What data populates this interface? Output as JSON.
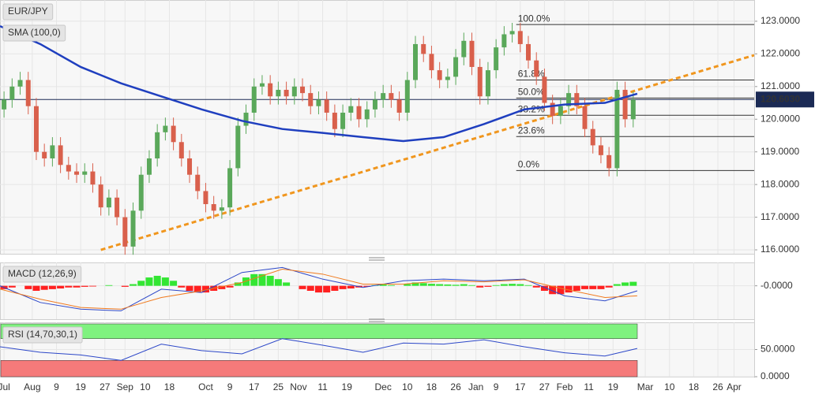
{
  "chart_data": [
    {
      "type": "candlestick",
      "title": "EUR/JPY",
      "xlim": [
        0,
        187
      ],
      "ylim": [
        115.88,
        123.65
      ],
      "yticks": [
        {
          "value": 123,
          "label": "123.0000"
        },
        {
          "value": 122,
          "label": "122.0000"
        },
        {
          "value": 121,
          "label": "121.0000"
        },
        {
          "value": 120,
          "label": "120.0000"
        },
        {
          "value": 119,
          "label": "119.0000"
        },
        {
          "value": 118,
          "label": "118.0000"
        },
        {
          "value": 117,
          "label": "117.0000"
        },
        {
          "value": 116,
          "label": "116.0000"
        }
      ],
      "grid": true,
      "up_color": "#5aa85a",
      "down_color": "#d9604c",
      "x": [
        1,
        3,
        5,
        7,
        9,
        11,
        13,
        15,
        17,
        19,
        21,
        23,
        25,
        27,
        29,
        31,
        33,
        35,
        37,
        39,
        41,
        43,
        45,
        47,
        49,
        51,
        53,
        55,
        57,
        59,
        61,
        63,
        65,
        67,
        69,
        71,
        73,
        75,
        77,
        79,
        81,
        83,
        85,
        87,
        89,
        91,
        93,
        95,
        97,
        99,
        101,
        103,
        105,
        107,
        109,
        111,
        113,
        115,
        117,
        119,
        121,
        123,
        125,
        127,
        129,
        131,
        133,
        135,
        137,
        139,
        141,
        143,
        145,
        147,
        149,
        151,
        153,
        155,
        157
      ],
      "open": [
        120.3,
        120.6,
        121.0,
        121.2,
        120.4,
        119.0,
        118.8,
        119.2,
        118.6,
        118.4,
        118.3,
        118.4,
        118.0,
        117.3,
        117.6,
        117.0,
        116.1,
        117.2,
        118.3,
        118.8,
        119.6,
        119.8,
        119.3,
        118.8,
        118.3,
        117.8,
        117.4,
        117.2,
        117.3,
        118.5,
        119.8,
        120.2,
        121.0,
        121.1,
        120.7,
        120.9,
        120.7,
        121.0,
        120.8,
        120.4,
        120.6,
        120.2,
        119.7,
        120.2,
        120.4,
        120.0,
        120.3,
        120.6,
        120.8,
        120.6,
        120.2,
        121.2,
        122.3,
        122.0,
        121.5,
        121.2,
        121.3,
        121.9,
        122.4,
        121.6,
        120.7,
        121.5,
        122.2,
        122.6,
        122.7,
        122.3,
        121.8,
        121.3,
        120.5,
        120.1,
        120.4,
        120.8,
        120.4,
        119.7,
        119.2,
        118.9,
        118.5,
        120.9,
        120.0
      ],
      "high": [
        120.85,
        121.25,
        121.45,
        121.45,
        120.65,
        119.25,
        119.45,
        119.45,
        118.85,
        118.65,
        118.65,
        118.65,
        118.25,
        117.85,
        117.85,
        117.25,
        117.45,
        118.55,
        119.05,
        119.85,
        120.05,
        120.05,
        119.55,
        119.05,
        118.55,
        118.05,
        117.65,
        117.55,
        118.75,
        120.05,
        120.45,
        121.25,
        121.35,
        121.35,
        121.15,
        121.15,
        121.25,
        121.25,
        121.05,
        120.85,
        120.85,
        120.45,
        120.45,
        120.65,
        120.65,
        120.55,
        120.85,
        121.05,
        121.05,
        120.85,
        121.45,
        122.55,
        122.55,
        122.25,
        121.75,
        121.55,
        122.15,
        122.65,
        122.65,
        121.85,
        121.75,
        122.45,
        122.85,
        122.95,
        122.95,
        122.55,
        122.05,
        121.55,
        120.75,
        120.65,
        121.05,
        121.05,
        120.65,
        119.95,
        119.45,
        119.15,
        121.15,
        121.15,
        120.85
      ],
      "low": [
        120.05,
        120.35,
        120.75,
        120.15,
        118.75,
        118.55,
        118.55,
        118.35,
        118.15,
        118.05,
        118.05,
        117.75,
        117.05,
        117.05,
        116.75,
        115.85,
        115.85,
        116.95,
        118.05,
        118.55,
        119.35,
        119.05,
        118.55,
        118.05,
        117.55,
        117.15,
        116.95,
        116.95,
        117.05,
        118.25,
        119.55,
        119.95,
        120.75,
        120.45,
        120.45,
        120.45,
        120.45,
        120.55,
        120.15,
        120.15,
        119.95,
        119.45,
        119.45,
        119.95,
        119.75,
        119.75,
        120.05,
        120.35,
        120.35,
        119.95,
        119.95,
        120.95,
        121.75,
        121.25,
        120.95,
        120.95,
        121.05,
        121.65,
        121.35,
        120.45,
        120.45,
        121.25,
        121.95,
        122.35,
        122.05,
        121.55,
        121.05,
        120.25,
        119.85,
        119.85,
        120.15,
        120.15,
        119.45,
        118.95,
        118.65,
        118.25,
        118.25,
        119.75,
        119.75
      ],
      "close": [
        120.6,
        121.0,
        121.2,
        120.4,
        119.0,
        118.8,
        119.2,
        118.6,
        118.4,
        118.3,
        118.4,
        118.0,
        117.3,
        117.6,
        117.0,
        116.1,
        117.2,
        118.3,
        118.8,
        119.6,
        119.8,
        119.3,
        118.8,
        118.3,
        117.8,
        117.4,
        117.2,
        117.3,
        118.5,
        119.8,
        120.2,
        121.0,
        121.1,
        120.7,
        120.9,
        120.7,
        121.0,
        120.8,
        120.4,
        120.6,
        120.2,
        119.7,
        120.2,
        120.4,
        120.0,
        120.3,
        120.6,
        120.8,
        120.6,
        120.2,
        121.2,
        122.3,
        122.0,
        121.5,
        121.2,
        121.3,
        121.9,
        122.4,
        121.6,
        120.7,
        121.5,
        122.2,
        122.6,
        122.7,
        122.3,
        121.8,
        121.3,
        120.5,
        120.1,
        120.4,
        120.8,
        120.4,
        119.7,
        119.2,
        118.9,
        118.5,
        120.9,
        120.0,
        120.6
      ],
      "sma": {
        "name": "SMA (100,0)",
        "color": "#1f3fbf",
        "x": [
          0,
          10,
          20,
          30,
          40,
          50,
          60,
          70,
          80,
          90,
          100,
          110,
          120,
          130,
          140,
          150,
          158
        ],
        "values": [
          122.85,
          122.3,
          121.6,
          121.1,
          120.7,
          120.3,
          119.95,
          119.7,
          119.58,
          119.45,
          119.33,
          119.45,
          119.85,
          120.3,
          120.45,
          120.5,
          120.78
        ]
      },
      "trendline": {
        "color": "#f0961e",
        "x": [
          25,
          187
        ],
        "values": [
          116.0,
          121.96
        ]
      },
      "fibonacci": {
        "start_x": 128,
        "levels": [
          {
            "value": 122.9,
            "label": "100.0%"
          },
          {
            "value": 121.2,
            "label": "61.8%"
          },
          {
            "value": 120.65,
            "label": "50.0%"
          },
          {
            "value": 120.12,
            "label": "38.2%"
          },
          {
            "value": 119.47,
            "label": "23.6%"
          },
          {
            "value": 118.43,
            "label": "0.0%"
          }
        ]
      },
      "last_price": {
        "value": 120.603,
        "label": "120.6030",
        "color": "#1b2a55"
      }
    },
    {
      "type": "macd",
      "title": "MACD (12,26,9)",
      "xlim": [
        0,
        187
      ],
      "ylim": [
        -1.0,
        0.7
      ],
      "yticks": [
        {
          "value": 0,
          "label": "-0.0000"
        }
      ],
      "up_color": "#33e633",
      "down_color": "#ff2020",
      "x": [
        1,
        3,
        5,
        7,
        9,
        11,
        13,
        15,
        17,
        19,
        21,
        23,
        25,
        27,
        29,
        31,
        33,
        35,
        37,
        39,
        41,
        43,
        45,
        47,
        49,
        51,
        53,
        55,
        57,
        59,
        61,
        63,
        65,
        67,
        69,
        71,
        73,
        75,
        77,
        79,
        81,
        83,
        85,
        87,
        89,
        91,
        93,
        95,
        97,
        99,
        101,
        103,
        105,
        107,
        109,
        111,
        113,
        115,
        117,
        119,
        121,
        123,
        125,
        127,
        129,
        131,
        133,
        135,
        137,
        139,
        141,
        143,
        145,
        147,
        149,
        151,
        153,
        155,
        157
      ],
      "histogram": [
        -0.1,
        -0.05,
        0.0,
        -0.1,
        -0.15,
        -0.12,
        -0.1,
        -0.08,
        -0.05,
        -0.05,
        -0.03,
        -0.02,
        0.0,
        0.02,
        0.0,
        -0.03,
        0.05,
        0.15,
        0.25,
        0.3,
        0.25,
        0.15,
        -0.05,
        -0.15,
        -0.2,
        -0.2,
        -0.15,
        -0.1,
        -0.05,
        0.1,
        0.25,
        0.35,
        0.35,
        0.3,
        0.2,
        0.1,
        0.0,
        -0.1,
        -0.15,
        -0.2,
        -0.2,
        -0.15,
        -0.1,
        -0.08,
        -0.05,
        -0.03,
        0.02,
        0.05,
        0.02,
        0.0,
        0.05,
        0.1,
        0.08,
        0.06,
        0.05,
        0.04,
        0.03,
        0.05,
        0.02,
        -0.05,
        -0.03,
        0.02,
        0.05,
        0.06,
        0.05,
        0.02,
        -0.05,
        -0.15,
        -0.25,
        -0.25,
        -0.2,
        -0.15,
        -0.1,
        -0.1,
        -0.1,
        -0.05,
        0.05,
        0.1,
        0.12
      ],
      "lines": [
        {
          "color": "#2c47c8",
          "x": [
            0,
            10,
            20,
            30,
            40,
            50,
            60,
            70,
            80,
            90,
            100,
            110,
            120,
            130,
            140,
            150,
            158
          ],
          "values": [
            0.0,
            -0.5,
            -0.7,
            -0.75,
            -0.1,
            -0.2,
            0.4,
            0.55,
            0.2,
            -0.05,
            0.15,
            0.2,
            0.15,
            0.2,
            -0.3,
            -0.45,
            -0.15
          ]
        },
        {
          "color": "#f07a1e",
          "x": [
            0,
            10,
            20,
            30,
            40,
            50,
            60,
            70,
            80,
            90,
            100,
            110,
            120,
            130,
            140,
            150,
            158
          ],
          "values": [
            -0.1,
            -0.4,
            -0.65,
            -0.7,
            -0.35,
            -0.15,
            0.1,
            0.5,
            0.35,
            0.05,
            0.05,
            0.15,
            0.12,
            0.18,
            -0.1,
            -0.35,
            -0.3
          ]
        }
      ]
    },
    {
      "type": "rsi",
      "title": "RSI (14,70,30,1)",
      "xlim": [
        0,
        187
      ],
      "ylim": [
        0,
        100
      ],
      "yticks": [
        {
          "value": 50,
          "label": "50.0000"
        },
        {
          "value": 0,
          "label": "0.0000"
        }
      ],
      "overbought": 70,
      "oversold": 30,
      "overbought_color": "#7ff27f",
      "oversold_color": "#f57a7a",
      "line": {
        "color": "#2c47c8",
        "x": [
          0,
          10,
          20,
          30,
          40,
          50,
          60,
          70,
          80,
          90,
          100,
          110,
          120,
          130,
          140,
          150,
          158
        ],
        "values": [
          55,
          45,
          40,
          30,
          60,
          48,
          42,
          70,
          58,
          45,
          62,
          60,
          68,
          55,
          44,
          38,
          52
        ]
      },
      "xticks": [
        {
          "value": 1,
          "label": "Jul"
        },
        {
          "value": 8,
          "label": "Aug"
        },
        {
          "value": 14,
          "label": "9"
        },
        {
          "value": 20,
          "label": "19"
        },
        {
          "value": 26,
          "label": "27"
        },
        {
          "value": 31,
          "label": "Sep"
        },
        {
          "value": 36,
          "label": "10"
        },
        {
          "value": 42,
          "label": "18"
        },
        {
          "value": 51,
          "label": "Oct"
        },
        {
          "value": 57,
          "label": "9"
        },
        {
          "value": 63,
          "label": "17"
        },
        {
          "value": 69,
          "label": "25"
        },
        {
          "value": 74,
          "label": "Nov"
        },
        {
          "value": 80,
          "label": "11"
        },
        {
          "value": 86,
          "label": "19"
        },
        {
          "value": 95,
          "label": "Dec"
        },
        {
          "value": 101,
          "label": "10"
        },
        {
          "value": 107,
          "label": "18"
        },
        {
          "value": 113,
          "label": "26"
        },
        {
          "value": 118,
          "label": "Jan"
        },
        {
          "value": 123,
          "label": "9"
        },
        {
          "value": 129,
          "label": "17"
        },
        {
          "value": 135,
          "label": "27"
        },
        {
          "value": 140,
          "label": "Feb"
        },
        {
          "value": 146,
          "label": "11"
        },
        {
          "value": 152,
          "label": "19"
        },
        {
          "value": 160,
          "label": "Mar"
        },
        {
          "value": 166,
          "label": "10"
        },
        {
          "value": 172,
          "label": "18"
        },
        {
          "value": 178,
          "label": "26"
        },
        {
          "value": 182,
          "label": "Apr"
        }
      ]
    }
  ]
}
